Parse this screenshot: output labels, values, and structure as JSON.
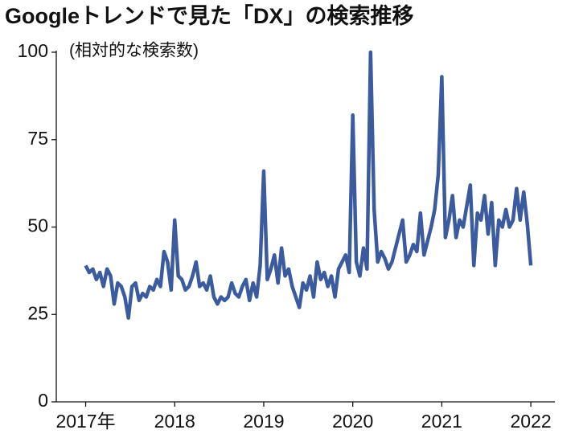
{
  "chart_data": {
    "type": "line",
    "title": "Googleトレンドで見た「DX」の検索推移",
    "y_label": "(相対的な検索数)",
    "color": "#3b5b9e",
    "grid": false,
    "xlim": [
      2016.67,
      2022.27
    ],
    "ylim": [
      0,
      100
    ],
    "xticks": [
      {
        "value": 2017,
        "label": "2017年"
      },
      2018,
      2019,
      2020,
      2021,
      2022
    ],
    "yticks": [
      0,
      25,
      50,
      75,
      100
    ],
    "x": [
      2017,
      2017.04,
      2017.08,
      2017.12,
      2017.16,
      2017.2,
      2017.24,
      2017.28,
      2017.32,
      2017.36,
      2017.4,
      2017.44,
      2017.48,
      2017.52,
      2017.56,
      2017.6,
      2017.64,
      2017.68,
      2017.72,
      2017.76,
      2017.8,
      2017.84,
      2017.88,
      2017.92,
      2017.96,
      2018,
      2018.04,
      2018.08,
      2018.12,
      2018.16,
      2018.2,
      2018.24,
      2018.28,
      2018.32,
      2018.36,
      2018.4,
      2018.44,
      2018.48,
      2018.52,
      2018.56,
      2018.6,
      2018.64,
      2018.68,
      2018.72,
      2018.76,
      2018.8,
      2018.84,
      2018.88,
      2018.92,
      2018.96,
      2019,
      2019.04,
      2019.08,
      2019.12,
      2019.16,
      2019.2,
      2019.24,
      2019.28,
      2019.32,
      2019.36,
      2019.4,
      2019.44,
      2019.48,
      2019.52,
      2019.56,
      2019.6,
      2019.64,
      2019.68,
      2019.72,
      2019.76,
      2019.8,
      2019.84,
      2019.88,
      2019.92,
      2019.96,
      2020,
      2020.04,
      2020.08,
      2020.12,
      2020.16,
      2020.2,
      2020.24,
      2020.28,
      2020.32,
      2020.36,
      2020.4,
      2020.44,
      2020.48,
      2020.52,
      2020.56,
      2020.6,
      2020.64,
      2020.68,
      2020.72,
      2020.76,
      2020.8,
      2020.84,
      2020.88,
      2020.92,
      2020.96,
      2021,
      2021.04,
      2021.08,
      2021.12,
      2021.16,
      2021.2,
      2021.24,
      2021.28,
      2021.32,
      2021.36,
      2021.4,
      2021.44,
      2021.48,
      2021.52,
      2021.56,
      2021.6,
      2021.64,
      2021.68,
      2021.72,
      2021.76,
      2021.8,
      2021.84,
      2021.88,
      2021.92,
      2021.96,
      2022
    ],
    "values": [
      39,
      37,
      38,
      35,
      37,
      33,
      38,
      36,
      28,
      34,
      33,
      30,
      24,
      33,
      34,
      29,
      31,
      30,
      33,
      32,
      35,
      33,
      43,
      40,
      32,
      52,
      36,
      35,
      32,
      33,
      36,
      40,
      33,
      34,
      32,
      36,
      30,
      28,
      30,
      29,
      30,
      34,
      31,
      30,
      33,
      35,
      29,
      34,
      30,
      39,
      66,
      35,
      38,
      42,
      34,
      44,
      36,
      38,
      33,
      30,
      27,
      34,
      32,
      36,
      30,
      40,
      35,
      37,
      33,
      36,
      30,
      38,
      40,
      42,
      37,
      82,
      40,
      36,
      44,
      38,
      100,
      55,
      40,
      43,
      41,
      38,
      40,
      44,
      48,
      52,
      40,
      42,
      45,
      43,
      54,
      42,
      46,
      50,
      55,
      65,
      93,
      47,
      52,
      59,
      47,
      52,
      50,
      56,
      62,
      39,
      54,
      52,
      59,
      48,
      57,
      39,
      52,
      50,
      55,
      50,
      52,
      61,
      52,
      60,
      51,
      39
    ]
  }
}
